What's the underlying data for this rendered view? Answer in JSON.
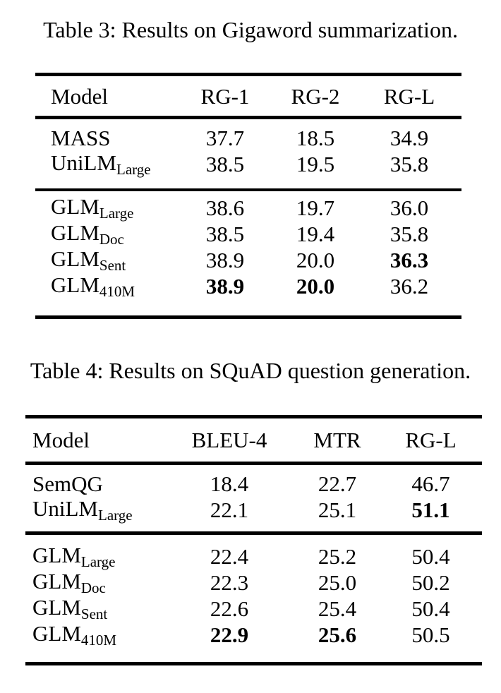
{
  "page": {
    "background_color": "#ffffff",
    "text_color": "#000000"
  },
  "tables": [
    {
      "caption": "Table 3: Results on Gigaword summarization.",
      "headers": [
        "Model",
        "RG-1",
        "RG-2",
        "RG-L"
      ],
      "groups": [
        {
          "rows": [
            {
              "model_base": "MASS",
              "model_sub": "",
              "values": [
                "37.7",
                "18.5",
                "34.9"
              ],
              "bold": [
                false,
                false,
                false
              ]
            },
            {
              "model_base": "UniLM",
              "model_sub": "Large",
              "values": [
                "38.5",
                "19.5",
                "35.8"
              ],
              "bold": [
                false,
                false,
                false
              ]
            }
          ]
        },
        {
          "rows": [
            {
              "model_base": "GLM",
              "model_sub": "Large",
              "values": [
                "38.6",
                "19.7",
                "36.0"
              ],
              "bold": [
                false,
                false,
                false
              ]
            },
            {
              "model_base": "GLM",
              "model_sub": "Doc",
              "values": [
                "38.5",
                "19.4",
                "35.8"
              ],
              "bold": [
                false,
                false,
                false
              ]
            },
            {
              "model_base": "GLM",
              "model_sub": "Sent",
              "values": [
                "38.9",
                "20.0",
                "36.3"
              ],
              "bold": [
                false,
                false,
                true
              ]
            },
            {
              "model_base": "GLM",
              "model_sub": "410M",
              "values": [
                "38.9",
                "20.0",
                "36.2"
              ],
              "bold": [
                true,
                true,
                false
              ]
            }
          ]
        }
      ]
    },
    {
      "caption": "Table 4: Results on SQuAD question generation.",
      "headers": [
        "Model",
        "BLEU-4",
        "MTR",
        "RG-L"
      ],
      "groups": [
        {
          "rows": [
            {
              "model_base": "SemQG",
              "model_sub": "",
              "values": [
                "18.4",
                "22.7",
                "46.7"
              ],
              "bold": [
                false,
                false,
                false
              ]
            },
            {
              "model_base": "UniLM",
              "model_sub": "Large",
              "values": [
                "22.1",
                "25.1",
                "51.1"
              ],
              "bold": [
                false,
                false,
                true
              ]
            }
          ]
        },
        {
          "rows": [
            {
              "model_base": "GLM",
              "model_sub": "Large",
              "values": [
                "22.4",
                "25.2",
                "50.4"
              ],
              "bold": [
                false,
                false,
                false
              ]
            },
            {
              "model_base": "GLM",
              "model_sub": "Doc",
              "values": [
                "22.3",
                "25.0",
                "50.2"
              ],
              "bold": [
                false,
                false,
                false
              ]
            },
            {
              "model_base": "GLM",
              "model_sub": "Sent",
              "values": [
                "22.6",
                "25.4",
                "50.4"
              ],
              "bold": [
                false,
                false,
                false
              ]
            },
            {
              "model_base": "GLM",
              "model_sub": "410M",
              "values": [
                "22.9",
                "25.6",
                "50.5"
              ],
              "bold": [
                true,
                true,
                false
              ]
            }
          ]
        }
      ]
    }
  ]
}
